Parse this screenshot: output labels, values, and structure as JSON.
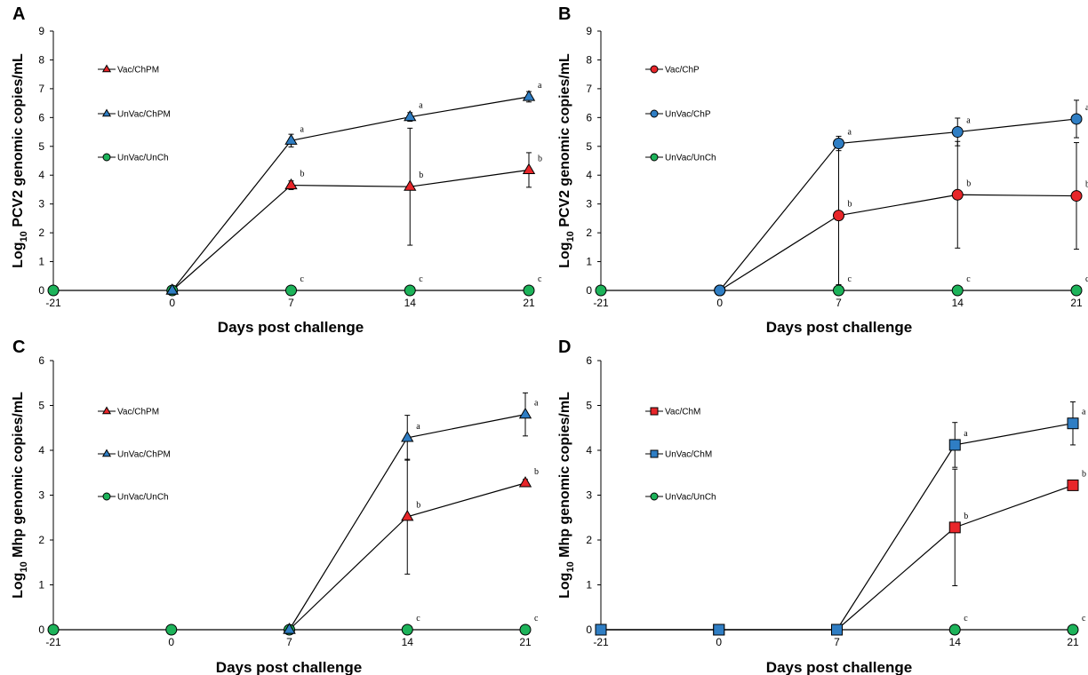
{
  "chart_data": [
    {
      "panel": "A",
      "type": "line",
      "xlabel": "Days post challenge",
      "ylabel_prefix": "Log",
      "ylabel_sub": "10",
      "ylabel_rest": " PCV2 genomic copies/mL",
      "categories": [
        "-21",
        "0",
        "7",
        "14",
        "21"
      ],
      "ylim": [
        0,
        9
      ],
      "yticks": [
        "0",
        "1",
        "2",
        "3",
        "4",
        "5",
        "6",
        "7",
        "8",
        "9"
      ],
      "series": [
        {
          "name": "Vac/ChPM",
          "marker": "triangle",
          "color": "#e8262a",
          "values": [
            null,
            0,
            3.65,
            3.6,
            4.18
          ],
          "err": [
            null,
            0,
            0.15,
            2.03,
            0.6
          ],
          "letters": [
            "",
            "",
            "b",
            "b",
            "b"
          ]
        },
        {
          "name": "UnVac/ChPM",
          "marker": "triangle",
          "color": "#2f7ec4",
          "values": [
            null,
            0,
            5.2,
            6.02,
            6.72
          ],
          "err": [
            null,
            0,
            0.22,
            0.15,
            0.18
          ],
          "letters": [
            "",
            "",
            "a",
            "a",
            "a"
          ]
        },
        {
          "name": "UnVac/UnCh",
          "marker": "circle",
          "color": "#1db35a",
          "values": [
            0,
            0,
            0,
            0,
            0
          ],
          "err": [
            0,
            0,
            0,
            0,
            0
          ],
          "letters": [
            "",
            "",
            "c",
            "c",
            "c"
          ]
        }
      ]
    },
    {
      "panel": "B",
      "type": "line",
      "xlabel": "Days post challenge",
      "ylabel_prefix": "Log",
      "ylabel_sub": "10",
      "ylabel_rest": " PCV2 genomic copies/mL",
      "categories": [
        "-21",
        "0",
        "7",
        "14",
        "21"
      ],
      "ylim": [
        0,
        9
      ],
      "yticks": [
        "0",
        "1",
        "2",
        "3",
        "4",
        "5",
        "6",
        "7",
        "8",
        "9"
      ],
      "series": [
        {
          "name": "Vac/ChP",
          "marker": "circle",
          "color": "#e8262a",
          "values": [
            null,
            0,
            2.6,
            3.32,
            3.28
          ],
          "err": [
            null,
            0,
            2.4,
            1.85,
            1.85
          ],
          "letters": [
            "",
            "",
            "b",
            "b",
            "b"
          ]
        },
        {
          "name": "UnVac/ChP",
          "marker": "circle",
          "color": "#2f7ec4",
          "values": [
            null,
            0,
            5.1,
            5.5,
            5.95
          ],
          "err": [
            null,
            0,
            0.25,
            0.48,
            0.65
          ],
          "letters": [
            "",
            "",
            "a",
            "a",
            "a"
          ]
        },
        {
          "name": "UnVac/UnCh",
          "marker": "circle",
          "color": "#1db35a",
          "values": [
            0,
            0,
            0,
            0,
            0
          ],
          "err": [
            0,
            0,
            0,
            0,
            0
          ],
          "letters": [
            "",
            "",
            "c",
            "c",
            "c"
          ]
        }
      ]
    },
    {
      "panel": "C",
      "type": "line",
      "xlabel": "Days post challenge",
      "ylabel_prefix": "Log",
      "ylabel_sub": "10",
      "ylabel_rest": " Mhp genomic copies/mL",
      "categories": [
        "-21",
        "0",
        "7",
        "14",
        "21"
      ],
      "ylim": [
        0,
        6
      ],
      "yticks": [
        "0",
        "1",
        "2",
        "3",
        "4",
        "5",
        "6"
      ],
      "series": [
        {
          "name": "Vac/ChPM",
          "marker": "triangle",
          "color": "#e8262a",
          "values": [
            null,
            null,
            0,
            2.52,
            3.27
          ],
          "err": [
            null,
            null,
            0,
            1.28,
            0.08
          ],
          "letters": [
            "",
            "",
            "",
            "b",
            "b"
          ]
        },
        {
          "name": "UnVac/ChPM",
          "marker": "triangle",
          "color": "#2f7ec4",
          "values": [
            null,
            null,
            0,
            4.28,
            4.8
          ],
          "err": [
            null,
            null,
            0,
            0.5,
            0.48
          ],
          "letters": [
            "",
            "",
            "",
            "a",
            "a"
          ]
        },
        {
          "name": "UnVac/UnCh",
          "marker": "circle",
          "color": "#1db35a",
          "values": [
            0,
            0,
            0,
            0,
            0
          ],
          "err": [
            0,
            0,
            0,
            0,
            0
          ],
          "letters": [
            "",
            "",
            "",
            "c",
            "c"
          ]
        }
      ]
    },
    {
      "panel": "D",
      "type": "line",
      "xlabel": "Days post challenge",
      "ylabel_prefix": "Log",
      "ylabel_sub": "10",
      "ylabel_rest": " Mhp genomic copies/mL",
      "categories": [
        "-21",
        "0",
        "7",
        "14",
        "21"
      ],
      "ylim": [
        0,
        6
      ],
      "yticks": [
        "0",
        "1",
        "2",
        "3",
        "4",
        "5",
        "6"
      ],
      "series": [
        {
          "name": "Vac/ChM",
          "marker": "square",
          "color": "#e8262a",
          "values": [
            0,
            0,
            0,
            2.28,
            3.22
          ],
          "err": [
            0,
            0,
            0,
            1.3,
            0.08
          ],
          "letters": [
            "",
            "",
            "",
            "b",
            "b"
          ]
        },
        {
          "name": "UnVac/ChM",
          "marker": "square",
          "color": "#2f7ec4",
          "values": [
            0,
            0,
            0,
            4.12,
            4.6
          ],
          "err": [
            0,
            0,
            0,
            0.5,
            0.48
          ],
          "letters": [
            "",
            "",
            "",
            "a",
            "a"
          ]
        },
        {
          "name": "UnVac/UnCh",
          "marker": "circle",
          "color": "#1db35a",
          "values": [
            0,
            0,
            0,
            0,
            0
          ],
          "err": [
            0,
            0,
            0,
            0,
            0
          ],
          "letters": [
            "",
            "",
            "",
            "c",
            "c"
          ]
        }
      ]
    }
  ]
}
